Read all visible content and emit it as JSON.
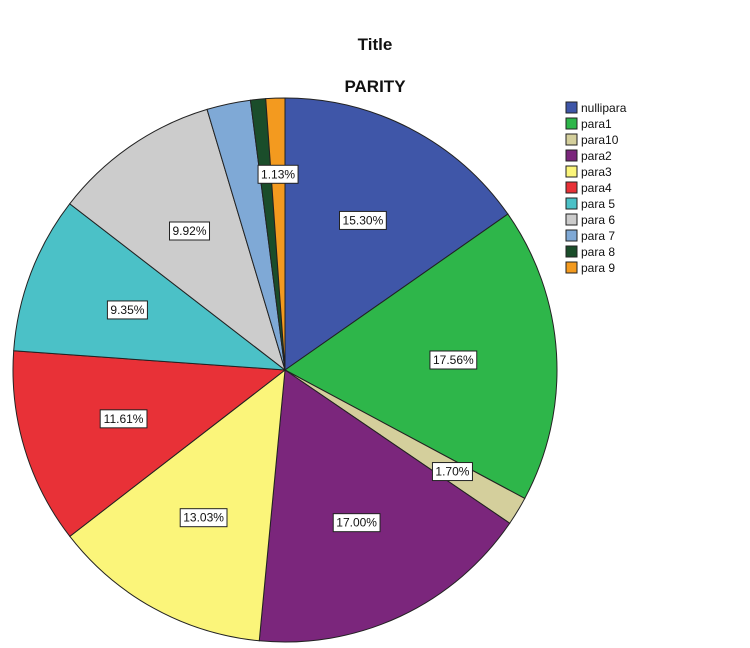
{
  "chart_data": {
    "type": "pie",
    "title": "Title",
    "subtitle": "PARITY",
    "slices": [
      {
        "label": "nullipara",
        "value": 15.3,
        "data_label": "15.30%",
        "color": "#3f56a8"
      },
      {
        "label": "para1",
        "value": 17.56,
        "data_label": "17.56%",
        "color": "#2eb64a"
      },
      {
        "label": "para10",
        "value": 1.7,
        "data_label": "1.70%",
        "color": "#d4cf9c"
      },
      {
        "label": "para2",
        "value": 17.0,
        "data_label": "17.00%",
        "color": "#7b267c"
      },
      {
        "label": "para3",
        "value": 13.03,
        "data_label": "13.03%",
        "color": "#fbf57a"
      },
      {
        "label": "para4",
        "value": 11.61,
        "data_label": "11.61%",
        "color": "#e83137"
      },
      {
        "label": "para 5",
        "value": 9.35,
        "data_label": "9.35%",
        "color": "#4bc1c7"
      },
      {
        "label": "para 6",
        "value": 9.92,
        "data_label": "9.92%",
        "color": "#cccccc"
      },
      {
        "label": "para 7",
        "value": 2.6,
        "data_label": "",
        "color": "#7fa9d6"
      },
      {
        "label": "para 8",
        "value": 0.9,
        "data_label": "",
        "color": "#1a4d2a"
      },
      {
        "label": "para 9",
        "value": 1.13,
        "data_label": "1.13%",
        "color": "#f39a1f"
      }
    ],
    "legend_position": "right"
  }
}
